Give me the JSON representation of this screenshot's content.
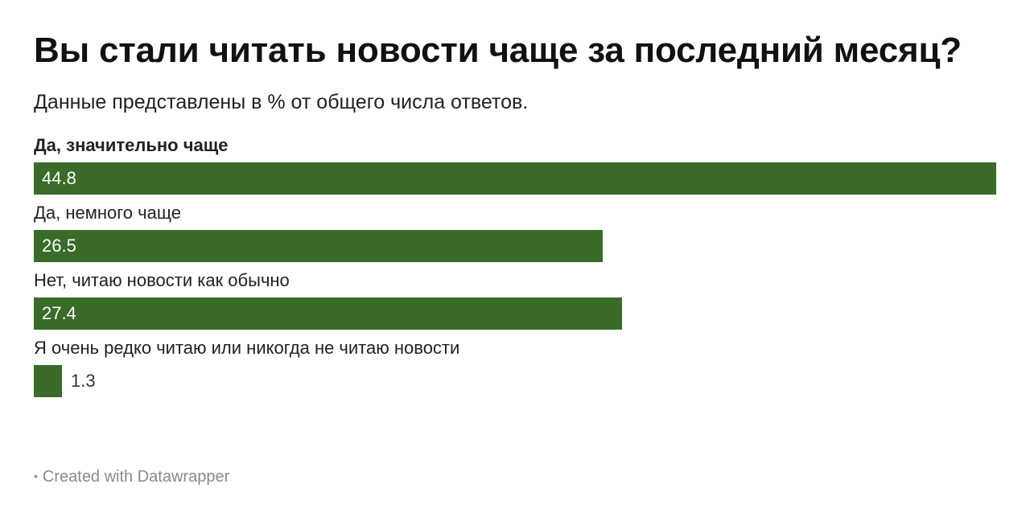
{
  "title": "Вы стали читать новости чаще за последний месяц?",
  "subtitle": "Данные представлены в % от общего числа ответов.",
  "footer": {
    "text": "Created with Datawrapper"
  },
  "colors": {
    "bar": "#386c28",
    "value_inside": "#ffffff",
    "value_outside": "#333333"
  },
  "chart_data": {
    "type": "bar",
    "orientation": "horizontal",
    "title": "Вы стали читать новости чаще за последний месяц?",
    "subtitle": "Данные представлены в % от общего числа ответов.",
    "categories": [
      "Да, значительно чаще",
      "Да, немного чаще",
      "Нет, читаю новости как обычно",
      "Я очень редко читаю или никогда не читаю новости"
    ],
    "values": [
      44.8,
      26.5,
      27.4,
      1.3
    ],
    "value_labels": [
      "44.8",
      "26.5",
      "27.4",
      "1.3"
    ],
    "bold_category_index": 0,
    "xlim": [
      0,
      44.8
    ],
    "grid": false,
    "legend": "none"
  }
}
